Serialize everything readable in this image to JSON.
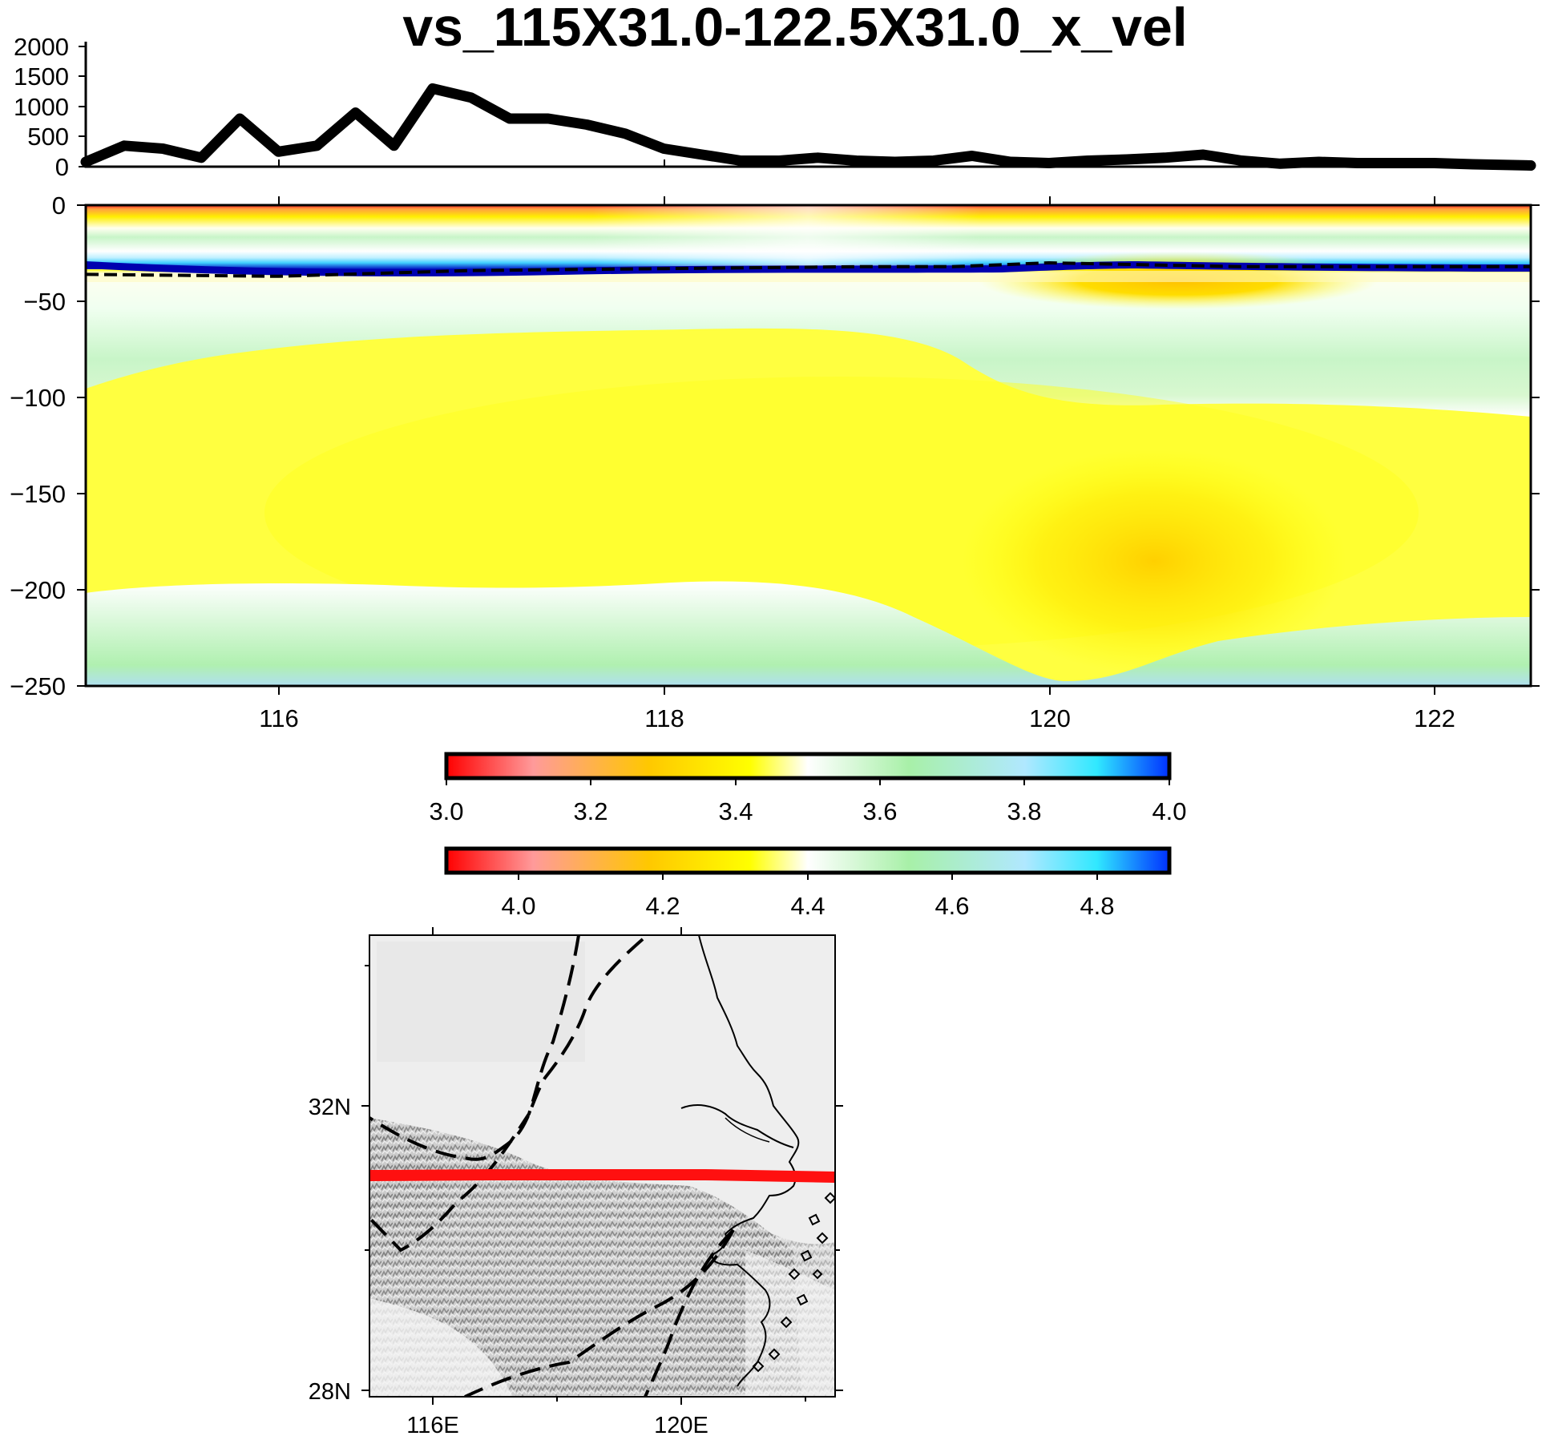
{
  "title": "vs_115X31.0-122.5X31.0_x_vel",
  "elevation_panel": {
    "y_ticks": [
      "2000",
      "1500",
      "1000",
      "500",
      "0"
    ]
  },
  "section_panel": {
    "y_ticks": [
      "0",
      "−50",
      "−100",
      "−150",
      "−200",
      "−250"
    ],
    "x_ticks": [
      "116",
      "118",
      "120",
      "122"
    ]
  },
  "colorbars": [
    {
      "ticks": [
        "3.0",
        "3.2",
        "3.4",
        "3.6",
        "3.8",
        "4.0"
      ]
    },
    {
      "ticks": [
        "4.0",
        "4.2",
        "4.4",
        "4.6",
        "4.8"
      ]
    }
  ],
  "colors": {
    "profile_line": "#ff1010",
    "palette": [
      "#ff0000",
      "#ff9a9a",
      "#ffd000",
      "#ffff00",
      "#ffffff",
      "#a8f0a8",
      "#30e8ff",
      "#0030ff"
    ]
  },
  "map": {
    "lat_labels": [
      "32N",
      "28N"
    ],
    "lon_labels": [
      "116E",
      "120E"
    ]
  },
  "chart_data": [
    {
      "type": "line",
      "x": [
        115.0,
        115.2,
        115.4,
        115.6,
        115.8,
        116.0,
        116.2,
        116.4,
        116.6,
        116.8,
        117.0,
        117.2,
        117.4,
        117.6,
        117.8,
        118.0,
        118.2,
        118.4,
        118.6,
        118.8,
        119.0,
        119.2,
        119.4,
        119.6,
        119.8,
        120.0,
        120.2,
        120.4,
        120.6,
        120.8,
        121.0,
        121.2,
        121.4,
        121.6,
        121.8,
        122.0,
        122.2,
        122.5
      ],
      "series": [
        {
          "values": [
            80,
            350,
            300,
            150,
            800,
            250,
            350,
            900,
            350,
            1300,
            1150,
            800,
            800,
            700,
            550,
            300,
            200,
            100,
            100,
            150,
            100,
            80,
            100,
            180,
            80,
            60,
            100,
            120,
            150,
            200,
            100,
            50,
            80,
            60,
            60,
            60,
            40,
            20
          ]
        }
      ],
      "ylim": [
        0,
        2000
      ],
      "xlim": [
        115,
        122.5
      ]
    },
    {
      "type": "heatmap",
      "xlim": [
        115,
        122.5
      ],
      "ylim": [
        -250,
        0
      ],
      "colorbar_ranges": [
        [
          3.0,
          4.0
        ],
        [
          3.9,
          4.9
        ]
      ],
      "moho_depth": {
        "x": [
          115.0,
          116.0,
          117.0,
          118.0,
          119.0,
          119.5,
          120.0,
          121.0,
          122.5
        ],
        "y": [
          -36,
          -37,
          -34,
          -33,
          -32,
          -32,
          -30,
          -32,
          -32
        ]
      }
    }
  ]
}
